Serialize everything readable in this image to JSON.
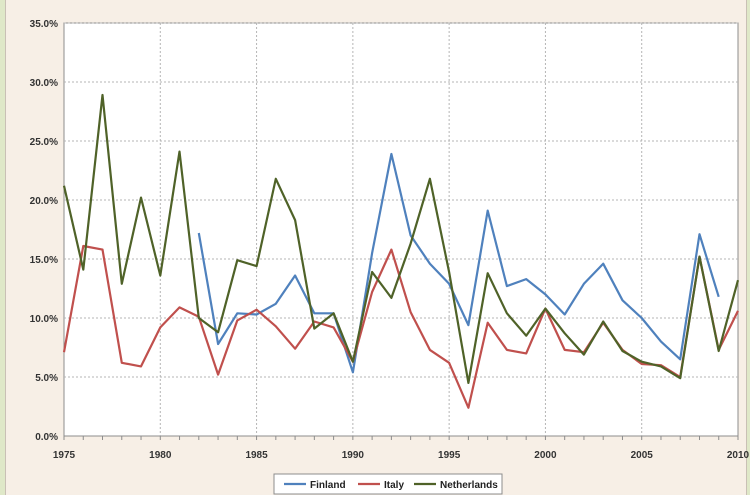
{
  "chart_data": {
    "type": "line",
    "x_range": [
      1975,
      2010
    ],
    "x_ticks": [
      "1975",
      "1980",
      "1985",
      "1990",
      "1995",
      "2000",
      "2005",
      "2010"
    ],
    "ylim": [
      0,
      35
    ],
    "y_ticks": [
      "0.0%",
      "5.0%",
      "10.0%",
      "15.0%",
      "20.0%",
      "25.0%",
      "30.0%",
      "35.0%"
    ],
    "grid": true,
    "legend_position": "bottom",
    "series": [
      {
        "name": "Finland",
        "color": "#4f81bd",
        "points": [
          [
            1982,
            17.2
          ],
          [
            1983,
            7.8
          ],
          [
            1984,
            10.4
          ],
          [
            1985,
            10.3
          ],
          [
            1986,
            11.2
          ],
          [
            1987,
            13.6
          ],
          [
            1988,
            10.4
          ],
          [
            1989,
            10.4
          ],
          [
            1990,
            5.4
          ],
          [
            1991,
            15.5
          ],
          [
            1992,
            23.9
          ],
          [
            1993,
            17.0
          ],
          [
            1994,
            14.6
          ],
          [
            1995,
            12.9
          ],
          [
            1996,
            9.4
          ],
          [
            1997,
            19.1
          ],
          [
            1998,
            12.7
          ],
          [
            1999,
            13.3
          ],
          [
            2000,
            12.0
          ],
          [
            2001,
            10.3
          ],
          [
            2002,
            12.9
          ],
          [
            2003,
            14.6
          ],
          [
            2004,
            11.5
          ],
          [
            2005,
            10.0
          ],
          [
            2006,
            8.0
          ],
          [
            2007,
            6.5
          ],
          [
            2008,
            17.1
          ],
          [
            2009,
            11.8
          ]
        ]
      },
      {
        "name": "Italy",
        "color": "#c0504d",
        "points": [
          [
            1975,
            7.1
          ],
          [
            1976,
            16.1
          ],
          [
            1977,
            15.8
          ],
          [
            1978,
            6.2
          ],
          [
            1979,
            5.9
          ],
          [
            1980,
            9.2
          ],
          [
            1981,
            10.9
          ],
          [
            1982,
            10.1
          ],
          [
            1983,
            5.2
          ],
          [
            1984,
            9.8
          ],
          [
            1985,
            10.7
          ],
          [
            1986,
            9.3
          ],
          [
            1987,
            7.4
          ],
          [
            1988,
            9.7
          ],
          [
            1989,
            9.2
          ],
          [
            1990,
            6.3
          ],
          [
            1991,
            12.2
          ],
          [
            1992,
            15.8
          ],
          [
            1993,
            10.5
          ],
          [
            1994,
            7.3
          ],
          [
            1995,
            6.2
          ],
          [
            1996,
            2.4
          ],
          [
            1997,
            9.6
          ],
          [
            1998,
            7.3
          ],
          [
            1999,
            7.0
          ],
          [
            2000,
            10.8
          ],
          [
            2001,
            7.3
          ],
          [
            2002,
            7.1
          ],
          [
            2003,
            9.6
          ],
          [
            2004,
            7.3
          ],
          [
            2005,
            6.1
          ],
          [
            2006,
            6.0
          ],
          [
            2007,
            5.0
          ],
          [
            2008,
            15.2
          ],
          [
            2009,
            7.3
          ],
          [
            2010,
            10.6
          ]
        ]
      },
      {
        "name": "Netherlands",
        "color": "#4f6228",
        "points": [
          [
            1975,
            21.2
          ],
          [
            1976,
            14.1
          ],
          [
            1977,
            28.9
          ],
          [
            1978,
            12.9
          ],
          [
            1979,
            20.2
          ],
          [
            1980,
            13.6
          ],
          [
            1981,
            24.1
          ],
          [
            1982,
            10.0
          ],
          [
            1983,
            8.8
          ],
          [
            1984,
            14.9
          ],
          [
            1985,
            14.4
          ],
          [
            1986,
            21.8
          ],
          [
            1987,
            18.3
          ],
          [
            1988,
            9.1
          ],
          [
            1989,
            10.4
          ],
          [
            1990,
            6.3
          ],
          [
            1991,
            13.9
          ],
          [
            1992,
            11.7
          ],
          [
            1993,
            16.3
          ],
          [
            1994,
            21.8
          ],
          [
            1995,
            13.9
          ],
          [
            1996,
            4.5
          ],
          [
            1997,
            13.8
          ],
          [
            1998,
            10.4
          ],
          [
            1999,
            8.5
          ],
          [
            2000,
            10.8
          ],
          [
            2001,
            8.7
          ],
          [
            2002,
            6.9
          ],
          [
            2003,
            9.7
          ],
          [
            2004,
            7.2
          ],
          [
            2005,
            6.3
          ],
          [
            2006,
            5.9
          ],
          [
            2007,
            4.9
          ],
          [
            2008,
            15.2
          ],
          [
            2009,
            7.2
          ],
          [
            2010,
            13.2
          ]
        ]
      }
    ]
  }
}
